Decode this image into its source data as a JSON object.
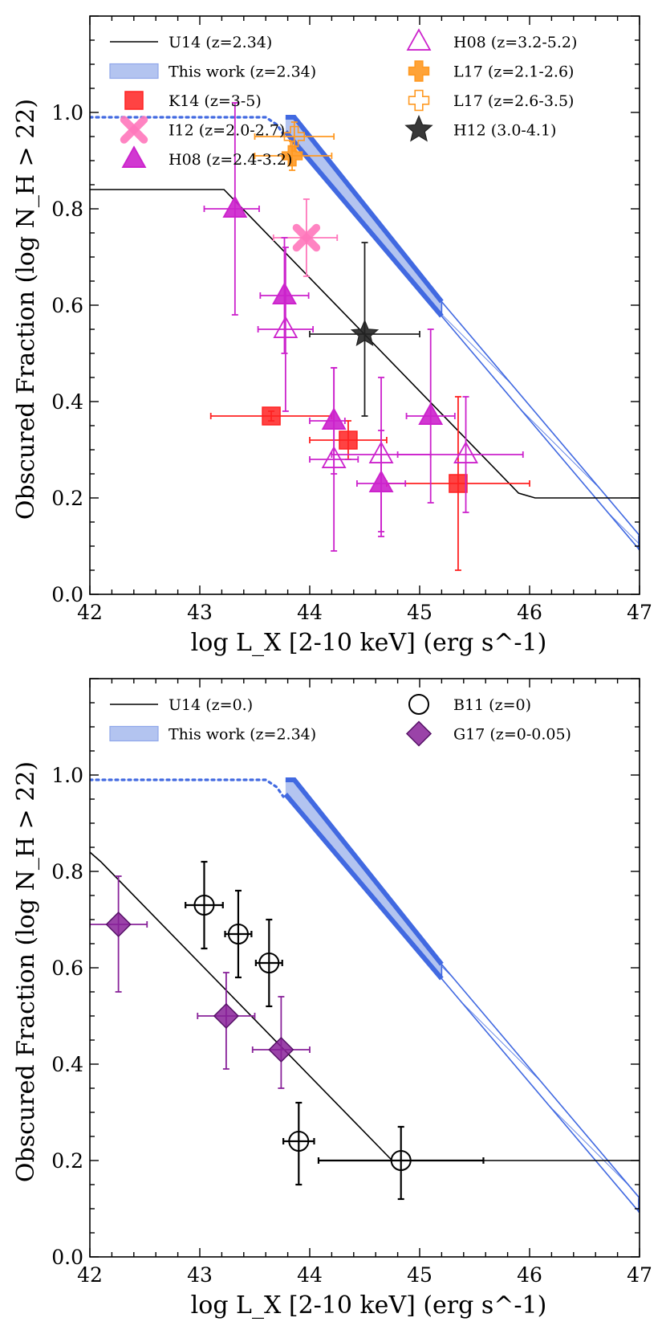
{
  "chart_data": [
    {
      "id": "top",
      "type": "scatter",
      "xlabel": "log L_X [2-10 keV] (erg s^-1)",
      "ylabel": "Obscured Fraction (log N_H > 22)",
      "xlim": [
        42,
        47
      ],
      "ylim": [
        0,
        1.2
      ],
      "xticks": [
        "42",
        "43",
        "44",
        "45",
        "46",
        "47"
      ],
      "yticks": [
        "0.0",
        "0.2",
        "0.4",
        "0.6",
        "0.8",
        "1.0"
      ],
      "ytick_values": [
        0,
        0.2,
        0.4,
        0.6,
        0.8,
        1.0
      ],
      "legend": [
        {
          "key": "u14",
          "label": "U14 (z=2.34)"
        },
        {
          "key": "band",
          "label": "This work (z=2.34)"
        },
        {
          "key": "k14",
          "label": "K14 (z=3-5)"
        },
        {
          "key": "i12",
          "label": "I12 (z=2.0-2.7)"
        },
        {
          "key": "h08a",
          "label": "H08 (z=2.4-3.2)"
        },
        {
          "key": "h08b",
          "label": "H08 (z=3.2-5.2)"
        },
        {
          "key": "l17a",
          "label": "L17 (z=2.1-2.6)"
        },
        {
          "key": "l17b",
          "label": "L17 (z=2.6-3.5)"
        },
        {
          "key": "h12",
          "label": "H12 (3.0-4.1)"
        }
      ],
      "line": {
        "key": "u14",
        "x": [
          42.0,
          43.22,
          45.9,
          46.05,
          47.0
        ],
        "y": [
          0.84,
          0.84,
          0.21,
          0.2,
          0.2
        ]
      },
      "band": {
        "x_start": 43.78,
        "x_solid_end": 45.2,
        "x_end": 47.0,
        "upper_start": 0.99,
        "lower_start": 0.96,
        "slope": -0.2695,
        "dotted_x": [
          42.0,
          43.6,
          43.7,
          43.76
        ],
        "dotted_y": [
          0.99,
          0.99,
          0.975,
          0.955
        ]
      },
      "series": [
        {
          "key": "k14",
          "name": "K14 (z=3-5)",
          "marker": "square",
          "color": "#ff2222",
          "filled": true,
          "points": [
            {
              "x": 43.65,
              "y": 0.37,
              "xerr": [
                0.55,
                0.55
              ],
              "yerr": [
                0.01,
                0.01
              ]
            },
            {
              "x": 44.35,
              "y": 0.32,
              "xerr": [
                0.35,
                0.35
              ],
              "yerr": [
                0.04,
                0.04
              ]
            },
            {
              "x": 45.35,
              "y": 0.23,
              "xerr": [
                0.65,
                0.65
              ],
              "yerr": [
                0.18,
                0.18
              ]
            }
          ]
        },
        {
          "key": "i12",
          "name": "I12 (z=2.0-2.7)",
          "marker": "cross",
          "color": "#ff77bb",
          "filled": true,
          "points": [
            {
              "x": 43.97,
              "y": 0.74,
              "xerr": [
                0.3,
                0.28
              ],
              "yerr": [
                0.08,
                0.08
              ]
            }
          ]
        },
        {
          "key": "h08a",
          "name": "H08 (z=2.4-3.2)",
          "marker": "triangle",
          "color": "#cc22cc",
          "filled": true,
          "points": [
            {
              "x": 43.32,
              "y": 0.8,
              "xerr": [
                0.28,
                0.22
              ],
              "yerr": [
                0.22,
                0.22
              ]
            },
            {
              "x": 43.77,
              "y": 0.62,
              "xerr": [
                0.22,
                0.22
              ],
              "yerr": [
                0.12,
                0.12
              ]
            },
            {
              "x": 44.22,
              "y": 0.36,
              "xerr": [
                0.22,
                0.1
              ],
              "yerr": [
                0.11,
                0.11
              ]
            },
            {
              "x": 44.65,
              "y": 0.23,
              "xerr": [
                0.22,
                0.22
              ],
              "yerr": [
                0.11,
                0.11
              ]
            },
            {
              "x": 45.1,
              "y": 0.37,
              "xerr": [
                0.22,
                0.22
              ],
              "yerr": [
                0.18,
                0.18
              ]
            }
          ]
        },
        {
          "key": "h08b",
          "name": "H08 (z=3.2-5.2)",
          "marker": "triangle",
          "color": "#cc22cc",
          "filled": false,
          "points": [
            {
              "x": 43.78,
              "y": 0.55,
              "xerr": [
                0.25,
                0.25
              ],
              "yerr": [
                0.17,
                0.17
              ]
            },
            {
              "x": 44.22,
              "y": 0.28,
              "xerr": [
                0.22,
                0.22
              ],
              "yerr": [
                0.19,
                0.19
              ]
            },
            {
              "x": 44.65,
              "y": 0.29,
              "xerr": [
                0.45,
                0.45
              ],
              "yerr": [
                0.16,
                0.16
              ]
            },
            {
              "x": 45.42,
              "y": 0.29,
              "xerr": [
                0.62,
                0.52
              ],
              "yerr": [
                0.12,
                0.12
              ]
            }
          ]
        },
        {
          "key": "l17a",
          "name": "L17 (z=2.1-2.6)",
          "marker": "plus",
          "color": "#ff9922",
          "filled": true,
          "points": [
            {
              "x": 43.84,
              "y": 0.91,
              "xerr": [
                0.34,
                0.36
              ],
              "yerr": [
                0.03,
                0.03
              ]
            }
          ]
        },
        {
          "key": "l17b",
          "name": "L17 (z=2.6-3.5)",
          "marker": "plus",
          "color": "#ff9922",
          "filled": false,
          "points": [
            {
              "x": 43.86,
              "y": 0.95,
              "xerr": [
                0.36,
                0.36
              ],
              "yerr": [
                0.03,
                0.03
              ]
            }
          ]
        },
        {
          "key": "h12",
          "name": "H12 (3.0-4.1)",
          "marker": "star",
          "color": "#222222",
          "filled": true,
          "points": [
            {
              "x": 44.5,
              "y": 0.54,
              "xerr": [
                0.5,
                0.5
              ],
              "yerr": [
                0.17,
                0.19
              ]
            }
          ]
        }
      ]
    },
    {
      "id": "bottom",
      "type": "scatter",
      "xlabel": "log L_X [2-10 keV] (erg s^-1)",
      "ylabel": "Obscured Fraction (log N_H > 22)",
      "xlim": [
        42,
        47
      ],
      "ylim": [
        0,
        1.2
      ],
      "xticks": [
        "42",
        "43",
        "44",
        "45",
        "46",
        "47"
      ],
      "yticks": [
        "0.0",
        "0.2",
        "0.4",
        "0.6",
        "0.8",
        "1.0"
      ],
      "ytick_values": [
        0,
        0.2,
        0.4,
        0.6,
        0.8,
        1.0
      ],
      "legend": [
        {
          "key": "u14",
          "label": "U14 (z=0.)"
        },
        {
          "key": "band",
          "label": "This work (z=2.34)"
        },
        {
          "key": "b11",
          "label": "B11 (z=0)"
        },
        {
          "key": "g17",
          "label": "G17 (z=0-0.05)"
        }
      ],
      "line": {
        "key": "u14",
        "x": [
          42.0,
          42.1,
          44.75,
          47.0
        ],
        "y": [
          0.84,
          0.82,
          0.2,
          0.2
        ]
      },
      "band": {
        "x_start": 43.78,
        "x_solid_end": 45.2,
        "x_end": 47.0,
        "upper_start": 0.99,
        "lower_start": 0.96,
        "slope": -0.2695,
        "dotted_x": [
          42.0,
          43.6,
          43.7,
          43.76
        ],
        "dotted_y": [
          0.99,
          0.99,
          0.975,
          0.955
        ]
      },
      "series": [
        {
          "key": "b11",
          "name": "B11 (z=0)",
          "marker": "circle",
          "color": "#000000",
          "filled": false,
          "points": [
            {
              "x": 43.04,
              "y": 0.73,
              "xerr": [
                0.17,
                0.17
              ],
              "yerr": [
                0.09,
                0.09
              ]
            },
            {
              "x": 43.35,
              "y": 0.67,
              "xerr": [
                0.12,
                0.12
              ],
              "yerr": [
                0.09,
                0.09
              ]
            },
            {
              "x": 43.63,
              "y": 0.61,
              "xerr": [
                0.12,
                0.12
              ],
              "yerr": [
                0.09,
                0.09
              ]
            },
            {
              "x": 43.9,
              "y": 0.24,
              "xerr": [
                0.14,
                0.14
              ],
              "yerr": [
                0.09,
                0.08
              ]
            },
            {
              "x": 44.83,
              "y": 0.2,
              "xerr": [
                0.75,
                0.75
              ],
              "yerr": [
                0.08,
                0.07
              ]
            }
          ]
        },
        {
          "key": "g17",
          "name": "G17 (z=0-0.05)",
          "marker": "diamond",
          "color": "#882299",
          "filled": true,
          "points": [
            {
              "x": 42.26,
              "y": 0.69,
              "xerr": [
                0.26,
                0.26
              ],
              "yerr": [
                0.14,
                0.1
              ]
            },
            {
              "x": 43.24,
              "y": 0.5,
              "xerr": [
                0.26,
                0.26
              ],
              "yerr": [
                0.11,
                0.09
              ]
            },
            {
              "x": 43.74,
              "y": 0.43,
              "xerr": [
                0.26,
                0.26
              ],
              "yerr": [
                0.08,
                0.11
              ]
            }
          ]
        }
      ]
    }
  ]
}
